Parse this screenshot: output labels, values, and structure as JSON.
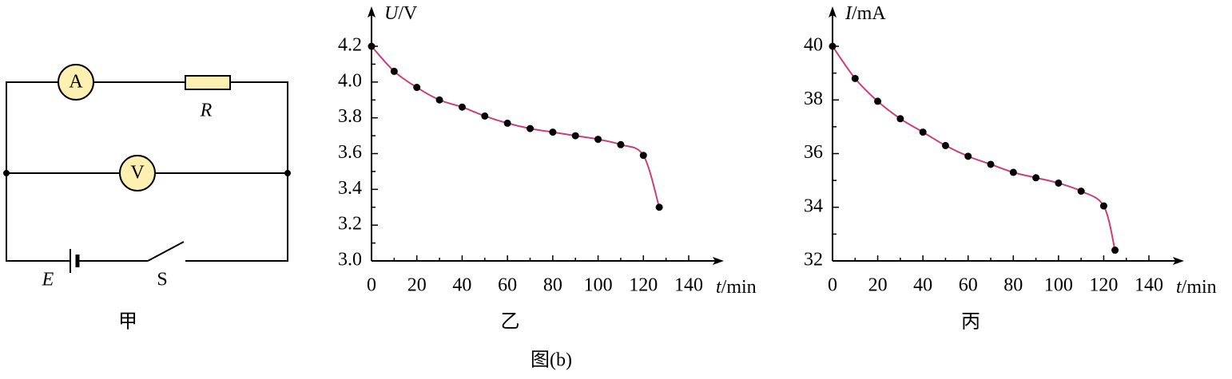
{
  "circuit": {
    "ammeter": "A",
    "voltmeter": "V",
    "resistor": "R",
    "emf": "E",
    "switch": "S",
    "caption": "甲"
  },
  "figure_caption": "图(b)",
  "chart_data": [
    {
      "type": "line",
      "caption": "乙",
      "x_label": {
        "symbol": "t",
        "unit": "/min"
      },
      "y_label": {
        "symbol": "U",
        "unit": "/V"
      },
      "x": [
        0,
        10,
        20,
        30,
        40,
        50,
        60,
        70,
        80,
        90,
        100,
        110,
        120,
        127
      ],
      "values": [
        4.2,
        4.06,
        3.97,
        3.9,
        3.86,
        3.81,
        3.77,
        3.74,
        3.72,
        3.7,
        3.68,
        3.65,
        3.59,
        3.3
      ],
      "color": "#c8407a",
      "marker_color": "#000000",
      "xlim": [
        0,
        140
      ],
      "xticks": [
        0,
        20,
        40,
        60,
        80,
        100,
        120,
        140
      ],
      "xminor": [
        10,
        30,
        50,
        70,
        90,
        110,
        130
      ],
      "ylim": [
        3.0,
        4.2
      ],
      "yticks": [
        {
          "value": 3.0,
          "label": "3.0"
        },
        3.2,
        3.4,
        3.6,
        3.8,
        {
          "value": 4.0,
          "label": "4.0"
        },
        4.2
      ],
      "yminor": [
        3.1,
        3.3,
        3.5,
        3.7,
        3.9,
        4.1
      ]
    },
    {
      "type": "line",
      "caption": "丙",
      "x_label": {
        "symbol": "t",
        "unit": "/min"
      },
      "y_label": {
        "symbol": "I",
        "unit": "/mA"
      },
      "x": [
        0,
        10,
        20,
        30,
        40,
        50,
        60,
        70,
        80,
        90,
        100,
        110,
        120,
        125
      ],
      "values": [
        40,
        38.8,
        37.95,
        37.3,
        36.8,
        36.3,
        35.9,
        35.6,
        35.3,
        35.1,
        34.9,
        34.6,
        34.05,
        32.4
      ],
      "color": "#c8407a",
      "marker_color": "#000000",
      "xlim": [
        0,
        140
      ],
      "xticks": [
        0,
        20,
        40,
        60,
        80,
        100,
        120,
        140
      ],
      "xminor": [
        10,
        30,
        50,
        70,
        90,
        110,
        130
      ],
      "ylim": [
        32,
        40
      ],
      "yticks": [
        32,
        34,
        36,
        38,
        40
      ],
      "yminor": [
        33,
        35,
        37,
        39
      ]
    }
  ]
}
